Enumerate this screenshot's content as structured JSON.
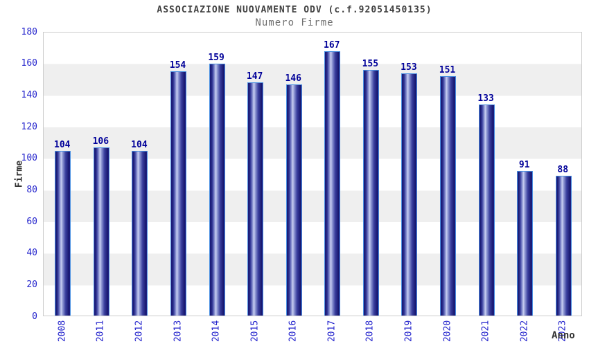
{
  "chart_data": {
    "type": "bar",
    "title": "ASSOCIAZIONE NUOVAMENTE ODV (c.f.92051450135)",
    "subtitle": "Numero Firme",
    "xlabel": "Anno",
    "ylabel": "Firme",
    "categories": [
      "2008",
      "2011",
      "2012",
      "2013",
      "2014",
      "2015",
      "2016",
      "2017",
      "2018",
      "2019",
      "2020",
      "2021",
      "2022",
      "2023"
    ],
    "values": [
      104,
      106,
      104,
      154,
      159,
      147,
      146,
      167,
      155,
      153,
      151,
      133,
      91,
      88
    ],
    "ylim": [
      0,
      180
    ],
    "yticks": [
      0,
      20,
      40,
      60,
      80,
      100,
      120,
      140,
      160,
      180
    ],
    "grid": "alternating horizontal bands every 20 units",
    "legend": "none",
    "colors": {
      "bar_dark": "#16166e",
      "bar_highlight": "#c9d0f2",
      "bar_border": "#4a90e2",
      "tick_label": "#2222cc",
      "value_label": "#000099",
      "title": "#404040",
      "subtitle": "#707070",
      "axis_title": "#333333",
      "band_gray": "#efefef",
      "plot_border": "#cccccc",
      "background": "#ffffff"
    }
  }
}
